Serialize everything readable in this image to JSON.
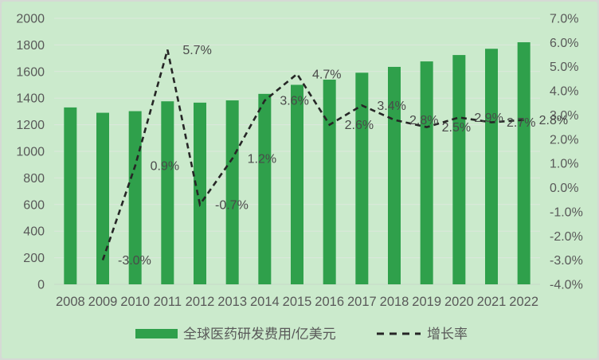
{
  "colors": {
    "frame": "#d5dad5",
    "background": "#cbeacc",
    "bar": "#2fa04b",
    "line": "#262626",
    "gridline": "#dce8dc",
    "axis_line": "#c7d8c7",
    "axis_text": "#595959",
    "data_label_text": "#4a4a4a",
    "legend_text": "#595959"
  },
  "chart_data": {
    "type": "bar",
    "combo": "bar+line",
    "grid": true,
    "legend_position": "bottom-center",
    "categories": [
      "2008",
      "2009",
      "2010",
      "2011",
      "2012",
      "2013",
      "2014",
      "2015",
      "2016",
      "2017",
      "2018",
      "2019",
      "2020",
      "2021",
      "2022"
    ],
    "series": [
      {
        "name": "全球医药研发费用/亿美元",
        "type": "bar",
        "axis": "left",
        "values": [
          1330,
          1290,
          1302,
          1376,
          1366,
          1383,
          1432,
          1500,
          1539,
          1591,
          1635,
          1676,
          1724,
          1771,
          1820
        ]
      },
      {
        "name": "增长率",
        "type": "line",
        "axis": "right",
        "values": [
          null,
          -3.0,
          0.9,
          5.7,
          -0.7,
          1.2,
          3.6,
          4.7,
          2.6,
          3.4,
          2.8,
          2.5,
          2.9,
          2.7,
          2.8
        ],
        "point_labels": [
          "",
          "-3.0%",
          "0.9%",
          "5.7%",
          "-0.7%",
          "1.2%",
          "3.6%",
          "4.7%",
          "2.6%",
          "3.4%",
          "2.8%",
          "2.5%",
          "2.9%",
          "2.7%",
          "2.8%"
        ]
      }
    ],
    "left_axis": {
      "min": 0,
      "max": 2000,
      "step": 200,
      "tick_labels": [
        "2000",
        "1800",
        "1600",
        "1400",
        "1200",
        "1000",
        "800",
        "600",
        "400",
        "200",
        "0"
      ]
    },
    "right_axis": {
      "min": -4.0,
      "max": 7.0,
      "step": 1.0,
      "tick_labels": [
        "7.0%",
        "6.0%",
        "5.0%",
        "4.0%",
        "3.0%",
        "2.0%",
        "1.0%",
        "0.0%",
        "-1.0%",
        "-2.0%",
        "-3.0%",
        "-4.0%"
      ]
    },
    "legend": [
      {
        "label": "全球医药研发费用/亿美元",
        "marker": "bar-swatch"
      },
      {
        "label": "增长率",
        "marker": "dashed-line"
      }
    ]
  }
}
